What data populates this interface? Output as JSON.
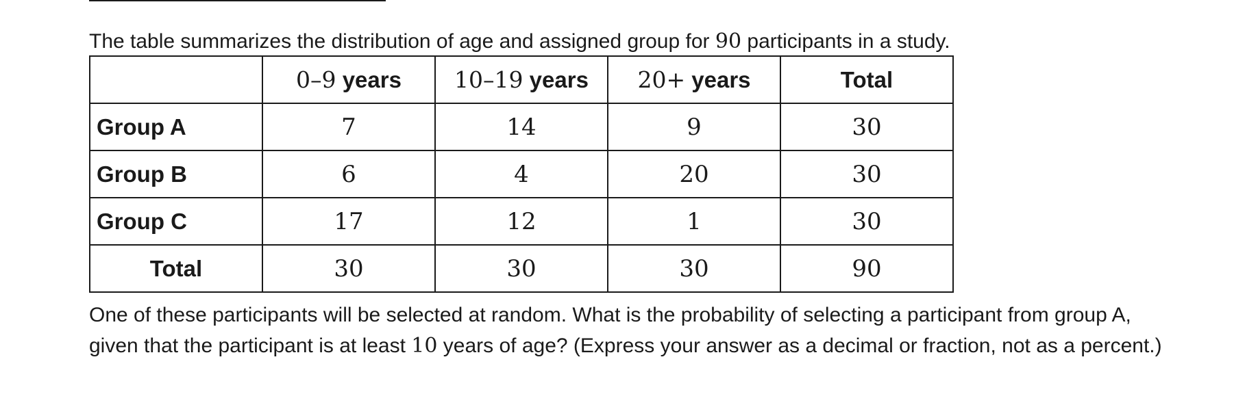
{
  "intro": {
    "before": "The table summarizes the distribution of age and assigned group for ",
    "count": "90",
    "after": " participants in a study."
  },
  "table": {
    "header": {
      "col1_num": "0–9",
      "col2_num": "10–19",
      "col3_num": "20+",
      "unit": " years",
      "total": "Total"
    },
    "rows": [
      {
        "label": "Group A",
        "values": [
          "7",
          "14",
          "9",
          "30"
        ]
      },
      {
        "label": "Group B",
        "values": [
          "6",
          "4",
          "20",
          "30"
        ]
      },
      {
        "label": "Group C",
        "values": [
          "17",
          "12",
          "1",
          "30"
        ]
      },
      {
        "label": "Total",
        "values": [
          "30",
          "30",
          "30",
          "90"
        ]
      }
    ]
  },
  "question": {
    "before": "One of these participants will be selected at random. What is the probability of selecting a participant from group A, given that the participant is at least ",
    "age": "10",
    "after": " years of age? (Express your answer as a decimal or fraction, not as a percent.)"
  }
}
